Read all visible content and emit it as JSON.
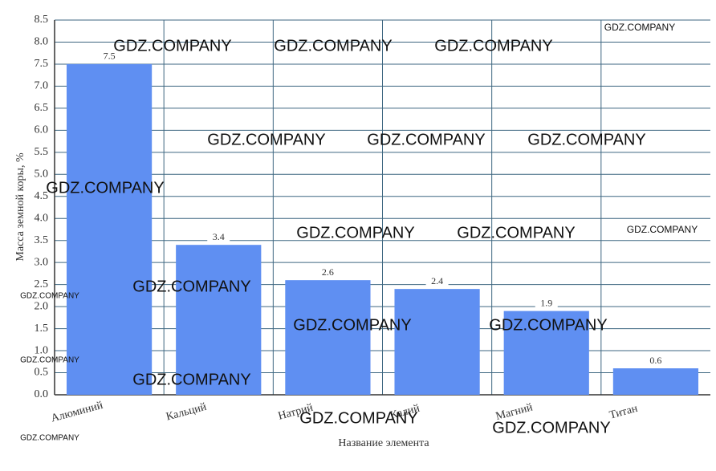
{
  "chart_data": {
    "type": "bar",
    "xlabel": "Название элемента",
    "ylabel": "Масса земной коры, %",
    "categories": [
      "Алюминий",
      "Кальций",
      "Натрий",
      "Калий",
      "Магний",
      "Титан"
    ],
    "values": [
      7.5,
      3.4,
      2.6,
      2.4,
      1.9,
      0.6
    ],
    "color": "#5f8ff2",
    "ylim": [
      0,
      8.5
    ],
    "yticks": [
      {
        "value": 0,
        "label": "0.0"
      },
      {
        "value": 0.5,
        "label": "0.5"
      },
      {
        "value": 1,
        "label": "1.0"
      },
      {
        "value": 1.5,
        "label": "1.5"
      },
      {
        "value": 2,
        "label": "2.0"
      },
      {
        "value": 2.5,
        "label": "2.5"
      },
      {
        "value": 3,
        "label": "3.0"
      },
      {
        "value": 3.5,
        "label": "3.5"
      },
      {
        "value": 4,
        "label": "4.0"
      },
      {
        "value": 4.5,
        "label": "4.5"
      },
      {
        "value": 5,
        "label": "5.0"
      },
      {
        "value": 5.5,
        "label": "5.5"
      },
      {
        "value": 6,
        "label": "6.0"
      },
      {
        "value": 6.5,
        "label": "6.5"
      },
      {
        "value": 7,
        "label": "7.0"
      },
      {
        "value": 7.5,
        "label": "7.5"
      },
      {
        "value": 8,
        "label": "8.0"
      },
      {
        "value": 8.5,
        "label": "8.5"
      }
    ],
    "grid": true,
    "watermark": "GDZ.COMPANY"
  }
}
